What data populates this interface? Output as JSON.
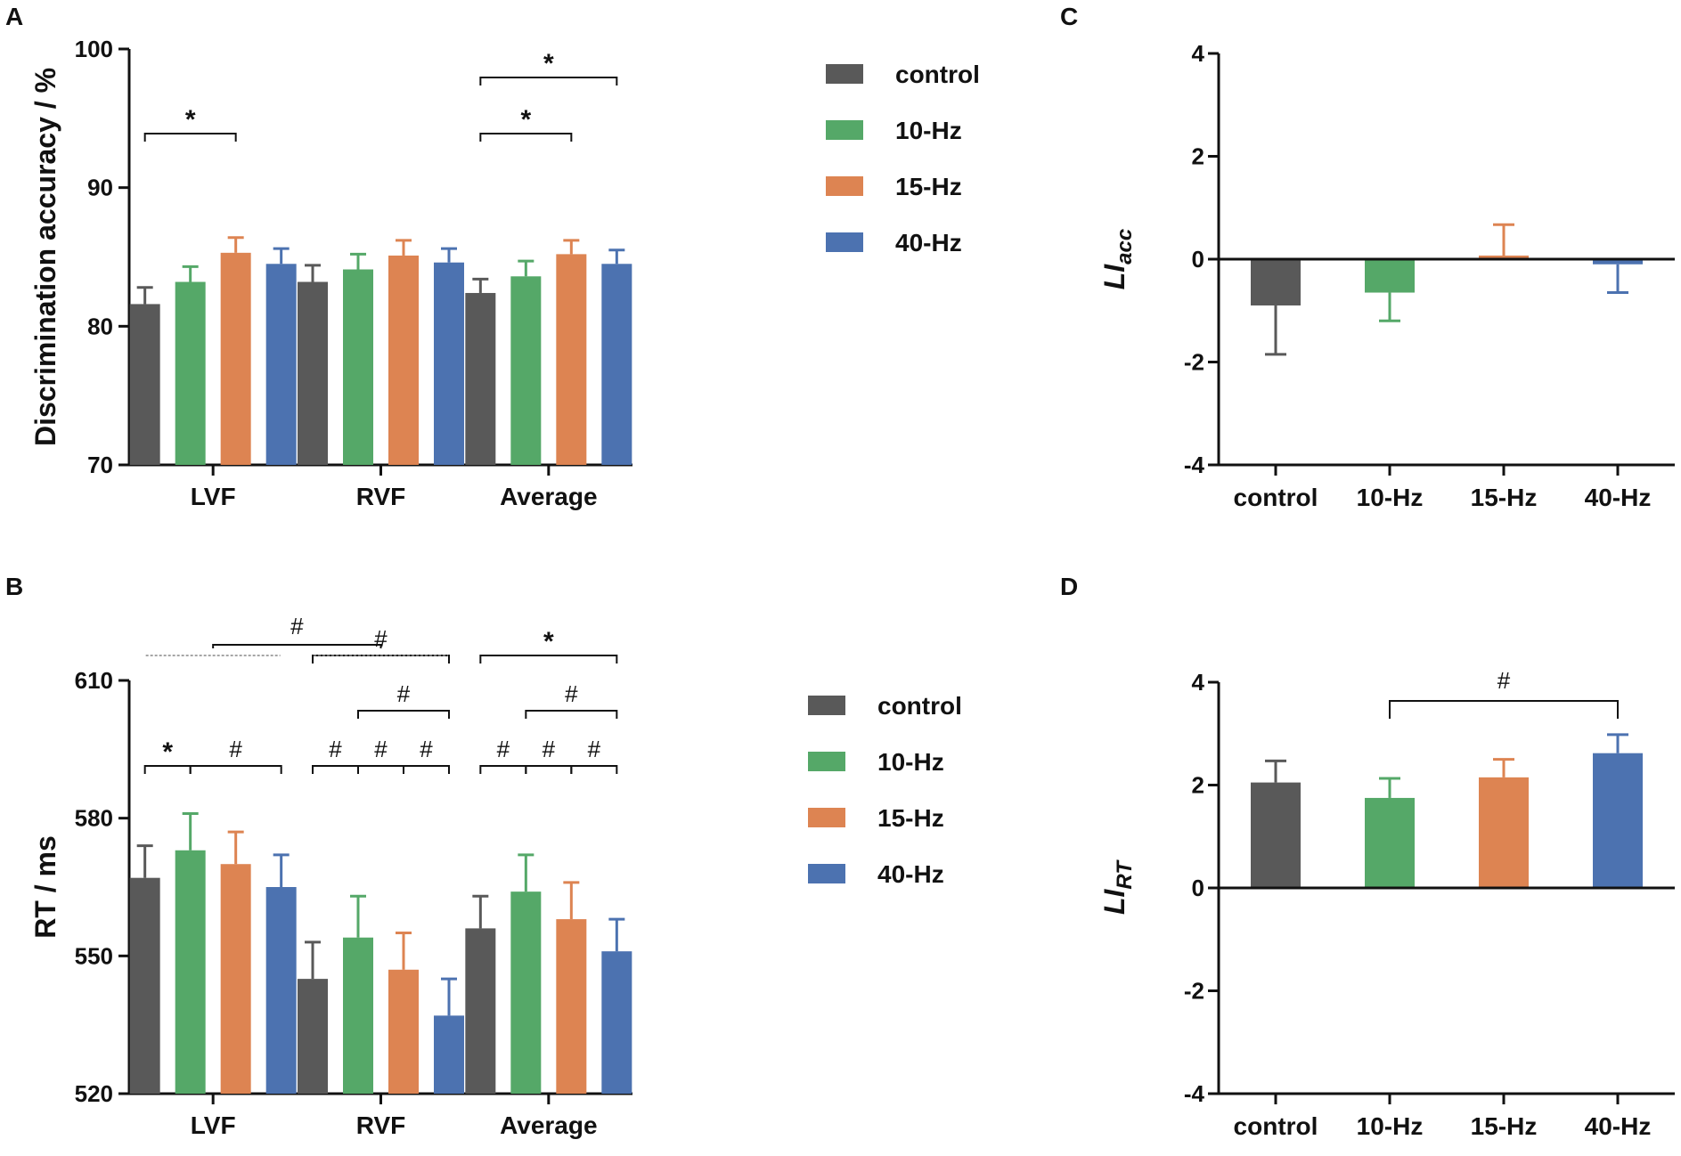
{
  "colors": {
    "control": "#595959",
    "10-Hz": "#55a868",
    "15-Hz": "#dd8452",
    "40-Hz": "#4c72b0",
    "axis": "#111111"
  },
  "chart_data": [
    {
      "panel": "A",
      "type": "bar",
      "ylabel": "Discrimination accuracy / %",
      "categories": [
        "LVF",
        "RVF",
        "Average"
      ],
      "yticks": [
        "70",
        "80",
        "90",
        "100"
      ],
      "ylim": [
        70,
        100
      ],
      "legend": [
        "control",
        "10-Hz",
        "15-Hz",
        "40-Hz"
      ],
      "series": [
        {
          "name": "control",
          "values": [
            81.6,
            83.2,
            82.4
          ],
          "errors": [
            1.2,
            1.2,
            1.0
          ]
        },
        {
          "name": "10-Hz",
          "values": [
            83.2,
            84.1,
            83.6
          ],
          "errors": [
            1.1,
            1.1,
            1.1
          ]
        },
        {
          "name": "15-Hz",
          "values": [
            85.3,
            85.1,
            85.2
          ],
          "errors": [
            1.1,
            1.1,
            1.0
          ]
        },
        {
          "name": "40-Hz",
          "values": [
            84.5,
            84.6,
            84.5
          ],
          "errors": [
            1.1,
            1.0,
            1.0
          ]
        }
      ],
      "annotations": [
        {
          "text": "*",
          "group": 0,
          "from": 0,
          "to": 2,
          "level": 0
        },
        {
          "text": "*",
          "group": 2,
          "from": 0,
          "to": 2,
          "level": 0
        },
        {
          "text": "*",
          "group": 2,
          "from": 0,
          "to": 3,
          "level": 1
        }
      ]
    },
    {
      "panel": "B",
      "type": "bar",
      "ylabel": "RT / ms",
      "categories": [
        "LVF",
        "RVF",
        "Average"
      ],
      "yticks": [
        "520",
        "550",
        "580",
        "610"
      ],
      "ylim": [
        520,
        610
      ],
      "legend": [
        "control",
        "10-Hz",
        "15-Hz",
        "40-Hz"
      ],
      "series": [
        {
          "name": "control",
          "values": [
            567,
            545,
            556
          ],
          "errors": [
            7,
            8,
            7
          ]
        },
        {
          "name": "10-Hz",
          "values": [
            573,
            554,
            564
          ],
          "errors": [
            8,
            9,
            8
          ]
        },
        {
          "name": "15-Hz",
          "values": [
            570,
            547,
            558
          ],
          "errors": [
            7,
            8,
            8
          ]
        },
        {
          "name": "40-Hz",
          "values": [
            565,
            537,
            551
          ],
          "errors": [
            7,
            8,
            7
          ]
        }
      ],
      "annotations": [
        {
          "text": "*",
          "group": 0,
          "from": 0,
          "to": 1,
          "level": 0
        },
        {
          "text": "#",
          "group": 0,
          "from": 1,
          "to": 3,
          "level": 0
        },
        {
          "text": "#",
          "group": 1,
          "from": 0,
          "to": 1,
          "level": 0
        },
        {
          "text": "#",
          "group": 1,
          "from": 1,
          "to": 2,
          "level": 0
        },
        {
          "text": "#",
          "group": 1,
          "from": 2,
          "to": 3,
          "level": 0
        },
        {
          "text": "#",
          "group": 1,
          "from": 1,
          "to": 3,
          "level": 1
        },
        {
          "text": "#",
          "group": 1,
          "from": 0,
          "to": 3,
          "level": 2
        },
        {
          "text": "#",
          "group": 2,
          "from": 0,
          "to": 1,
          "level": 0
        },
        {
          "text": "#",
          "group": 2,
          "from": 1,
          "to": 2,
          "level": 0
        },
        {
          "text": "#",
          "group": 2,
          "from": 2,
          "to": 3,
          "level": 0
        },
        {
          "text": "#",
          "group": 2,
          "from": 1,
          "to": 3,
          "level": 1
        },
        {
          "text": "*",
          "group": 2,
          "from": 0,
          "to": 3,
          "level": 2
        },
        {
          "text": "#",
          "between_groups": [
            0,
            1
          ],
          "level": 3
        }
      ]
    },
    {
      "panel": "C",
      "type": "bar",
      "ylabel": "LI",
      "ylabel_sub": "acc",
      "categories": [
        "control",
        "10-Hz",
        "15-Hz",
        "40-Hz"
      ],
      "yticks": [
        "-4",
        "-2",
        "0",
        "2",
        "4"
      ],
      "ylim": [
        -4,
        4
      ],
      "values": [
        -0.9,
        -0.65,
        0.07,
        -0.1
      ],
      "errors": [
        0.95,
        0.55,
        0.6,
        0.55
      ],
      "annotations": []
    },
    {
      "panel": "D",
      "type": "bar",
      "ylabel": "LI",
      "ylabel_sub": "RT",
      "categories": [
        "control",
        "10-Hz",
        "15-Hz",
        "40-Hz"
      ],
      "yticks": [
        "-4",
        "-2",
        "0",
        "2",
        "4"
      ],
      "ylim": [
        -4,
        4
      ],
      "values": [
        2.05,
        1.75,
        2.15,
        2.62
      ],
      "errors": [
        0.42,
        0.38,
        0.35,
        0.36
      ],
      "annotations": [
        {
          "text": "#",
          "from": 1,
          "to": 3
        }
      ]
    }
  ]
}
